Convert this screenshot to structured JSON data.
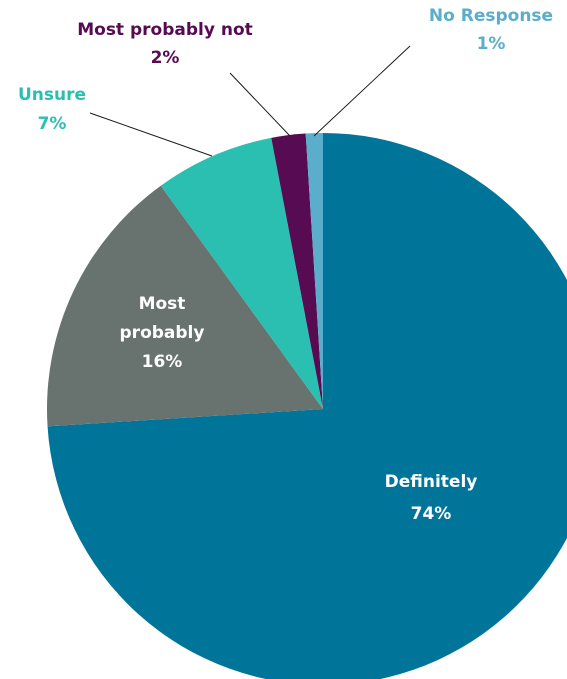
{
  "chart_data": {
    "type": "pie",
    "start": "top",
    "direction": "clockwise",
    "slices": [
      {
        "label": "Definitely",
        "value": 74,
        "pct_label": "74%",
        "color": "#00759a",
        "text_color": "#ffffff",
        "label_position": "inside"
      },
      {
        "label": "Most probably",
        "value": 16,
        "pct_label": "16%",
        "color": "#687370",
        "text_color": "#ffffff",
        "label_position": "inside"
      },
      {
        "label": "Unsure",
        "value": 7,
        "pct_label": "7%",
        "color": "#2bbfb1",
        "text_color": "#2bbfb1",
        "label_position": "outside"
      },
      {
        "label": "Most probably not",
        "value": 2,
        "pct_label": "2%",
        "color": "#560b53",
        "text_color": "#560b53",
        "label_position": "outside"
      },
      {
        "label": "No Response",
        "value": 1,
        "pct_label": "1%",
        "color": "#5aaecb",
        "text_color": "#5aaecb",
        "label_position": "outside"
      }
    ]
  }
}
